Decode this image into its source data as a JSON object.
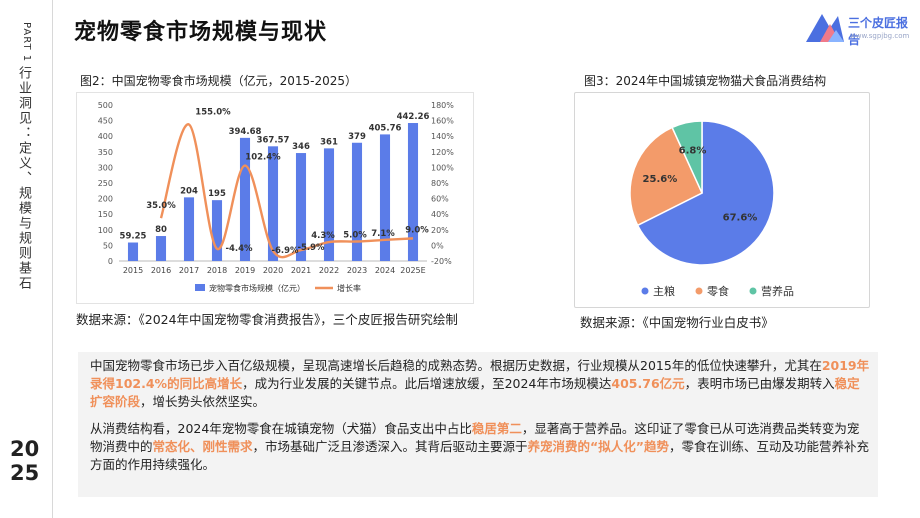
{
  "sidebar": {
    "part": "PART 1",
    "title": "行业洞见：定义、规模与规则基石",
    "year_top": "20",
    "year_bottom": "25"
  },
  "page_title": "宠物零食市场规模与现状",
  "logo": {
    "text": "三个皮匠报告",
    "sub": "www.sgpjbg.com"
  },
  "left_chart": {
    "caption": "图2：中国宠物零食市场规模（亿元，2015-2025）",
    "source": "数据来源：《2024年中国宠物零食消费报告》，三个皮匠报告研究绘制"
  },
  "right_chart": {
    "caption": "图3：2024年中国城镇宠物猫犬食品消费结构",
    "source": "数据来源：《中国宠物行业白皮书》"
  },
  "chart_data": [
    {
      "type": "bar",
      "title": "",
      "categories": [
        "2015",
        "2016",
        "2017",
        "2018",
        "2019",
        "2020",
        "2021",
        "2022",
        "2023",
        "2024",
        "2025E"
      ],
      "series": [
        {
          "name": "宠物零食市场规模（亿元）",
          "kind": "bar",
          "axis": "left",
          "color": "#5b7ce8",
          "values": [
            59.25,
            80,
            204,
            195,
            394.68,
            367.57,
            346,
            361,
            379,
            405.76,
            442.26
          ],
          "labels": [
            "59.25",
            "80",
            "204",
            "195",
            "394.68",
            "367.57",
            "346",
            "361",
            "379",
            "405.76",
            "442.26"
          ]
        },
        {
          "name": "增长率",
          "kind": "line",
          "axis": "right",
          "color": "#f0905a",
          "values": [
            null,
            35.0,
            155.0,
            -4.4,
            102.4,
            -6.9,
            -5.9,
            4.3,
            5.0,
            7.1,
            9.0
          ],
          "labels": [
            "",
            "35.0%",
            "155.0%",
            "-4.4%",
            "102.4%",
            "-6.9%",
            "-5.9%",
            "4.3%",
            "5.0%",
            "7.1%",
            "9.0%"
          ]
        }
      ],
      "y_left": {
        "min": 0,
        "max": 500,
        "ticks": [
          "0",
          "50",
          "100",
          "150",
          "200",
          "250",
          "300",
          "350",
          "400",
          "450",
          "500"
        ]
      },
      "y_right": {
        "min": -20,
        "max": 180,
        "ticks": [
          "-20%",
          "0%",
          "20%",
          "40%",
          "60%",
          "80%",
          "100%",
          "120%",
          "140%",
          "160%",
          "180%"
        ]
      },
      "grid": false,
      "legend": "bottom"
    },
    {
      "type": "pie",
      "title": "",
      "slices": [
        {
          "name": "主粮",
          "value": 67.6,
          "label": "67.6%",
          "color": "#5b7ce8"
        },
        {
          "name": "零食",
          "value": 25.6,
          "label": "25.6%",
          "color": "#f39b6a"
        },
        {
          "name": "营养品",
          "value": 6.8,
          "label": "6.8%",
          "color": "#5fc4a5"
        }
      ],
      "legend": "bottom"
    }
  ],
  "text": {
    "p1": [
      {
        "t": "中国宠物零食市场已步入百亿级规模，呈现高速增长后趋稳的成熟态势。根据历史数据，行业规模从2015年的低位快速攀升，尤其在",
        "h": false
      },
      {
        "t": "2019年录得102.4%的同比高增长",
        "h": true
      },
      {
        "t": "，成为行业发展的关键节点。此后增速放缓，至2024年市场规模达",
        "h": false
      },
      {
        "t": "405.76亿元",
        "h": true
      },
      {
        "t": "，表明市场已由爆发期转入",
        "h": false
      },
      {
        "t": "稳定扩容阶段",
        "h": true
      },
      {
        "t": "，增长势头依然坚实。",
        "h": false
      }
    ],
    "p2": [
      {
        "t": "从消费结构看，2024年宠物零食在城镇宠物（犬猫）食品支出中占比",
        "h": false
      },
      {
        "t": "稳居第二",
        "h": true
      },
      {
        "t": "，显著高于营养品。这印证了零食已从可选消费品类转变为宠物消费中的",
        "h": false
      },
      {
        "t": "常态化、刚性需求",
        "h": true
      },
      {
        "t": "，市场基础广泛且渗透深入。其背后驱动主要源于",
        "h": false
      },
      {
        "t": "养宠消费的“拟人化”趋势",
        "h": true
      },
      {
        "t": "，零食在训练、互动及功能营养补充方面的作用持续强化。",
        "h": false
      }
    ]
  },
  "colors": {
    "accent": "#f0905a",
    "bar": "#5b7ce8",
    "panel_bg": "#f3f3f3"
  }
}
